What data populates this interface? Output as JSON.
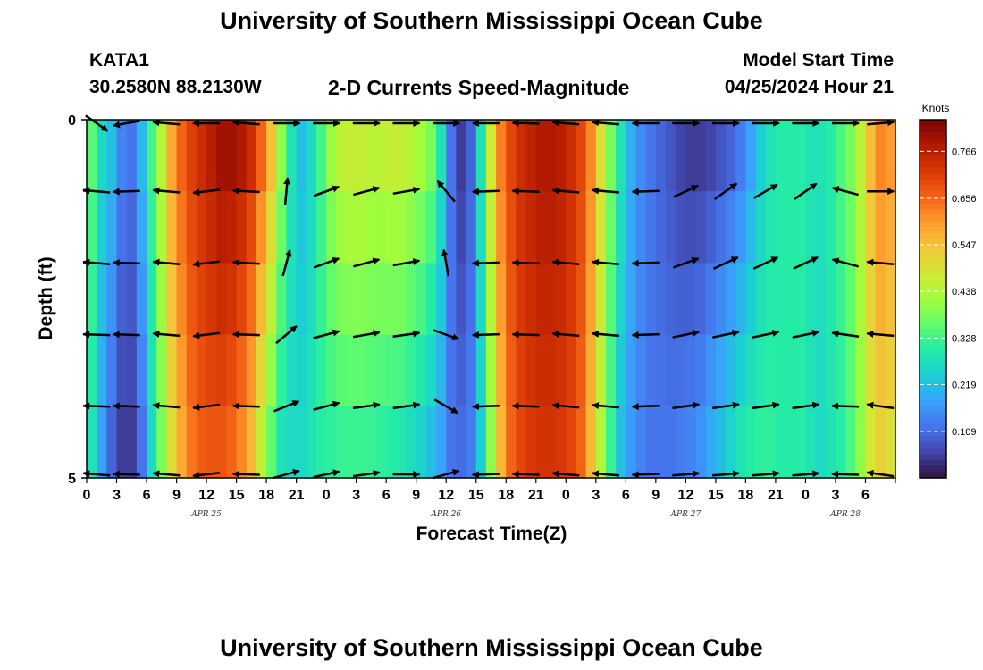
{
  "page": {
    "title_top": "University of Southern Mississippi Ocean Cube",
    "title_bottom": "University of Southern Mississippi Ocean Cube",
    "station_id": "KATA1",
    "station_coords": "30.2580N  88.2130W",
    "chart_heading": "2-D Currents Speed-Magnitude",
    "model_start_label": "Model Start Time",
    "model_start_value": "04/25/2024 Hour 21"
  },
  "colors": {
    "colormap": [
      "#30123b",
      "#4145ab",
      "#4675ed",
      "#39a2fc",
      "#1bcfd4",
      "#24eca6",
      "#61fc6c",
      "#a4fc3b",
      "#d1e834",
      "#f3c63a",
      "#fe9b2d",
      "#f36315",
      "#d93806",
      "#b11901",
      "#7a0403"
    ],
    "arrow": "#000000",
    "axis": "#000000"
  },
  "chart_data": {
    "type": "heatmap",
    "title": "2-D Currents Speed-Magnitude",
    "xlabel": "Forecast Time(Z)",
    "ylabel": "Depth (ft)",
    "colorbar_label": "Knots",
    "colorbar_ticks": [
      0.766,
      0.656,
      0.547,
      0.438,
      0.328,
      0.219,
      0.109
    ],
    "colorbar_tick_labels": [
      "0.766",
      "0.656",
      "0.547",
      "0.438",
      "0.328",
      "0.219",
      "0.109"
    ],
    "zlim": [
      0.0,
      0.84
    ],
    "xlim": [
      0,
      81
    ],
    "ylim": [
      0,
      5
    ],
    "x_ticks": [
      0,
      3,
      6,
      9,
      12,
      15,
      18,
      21,
      24,
      27,
      30,
      33,
      36,
      39,
      42,
      45,
      48,
      51,
      54,
      57,
      60,
      63,
      66,
      69,
      72,
      75,
      78,
      81
    ],
    "x_tick_labels": [
      "0",
      "3",
      "6",
      "9",
      "12",
      "15",
      "18",
      "21",
      "0",
      "3",
      "6",
      "9",
      "12",
      "15",
      "18",
      "21",
      "0",
      "3",
      "6",
      "9",
      "12",
      "15",
      "18",
      "21",
      "0",
      "3",
      "6"
    ],
    "x_tick_labels_note": "labels align with x_ticks from hour 0 to 78 (27 labels shown + end)",
    "y_tick_values": [
      0,
      5
    ],
    "y_tick_labels": [
      "0",
      "5"
    ],
    "date_labels": [
      {
        "text": "APR 25",
        "x": 12
      },
      {
        "text": "APR 26",
        "x": 36
      },
      {
        "text": "APR 27",
        "x": 60
      },
      {
        "text": "APR 28",
        "x": 76
      }
    ],
    "depth_keys": [
      0,
      1,
      2,
      3,
      4,
      5
    ],
    "speed_profile": {
      "hours": [
        0,
        1,
        2,
        3,
        4,
        5,
        6,
        7,
        8,
        9,
        10,
        11,
        12,
        13,
        14,
        15,
        16,
        17,
        18,
        19,
        20,
        21,
        22,
        23,
        24,
        25,
        26,
        27,
        28,
        29,
        30,
        31,
        32,
        33,
        34,
        35,
        36,
        37,
        38,
        39,
        40,
        41,
        42,
        43,
        44,
        45,
        46,
        47,
        48,
        49,
        50,
        51,
        52,
        53,
        54,
        55,
        56,
        57,
        58,
        59,
        60,
        61,
        62,
        63,
        64,
        65,
        66,
        67,
        68,
        69,
        70,
        71,
        72,
        73,
        74,
        75,
        76,
        77,
        78,
        79,
        80,
        81
      ],
      "surface": [
        0.35,
        0.26,
        0.22,
        0.14,
        0.12,
        0.21,
        0.33,
        0.44,
        0.58,
        0.66,
        0.71,
        0.74,
        0.77,
        0.8,
        0.8,
        0.78,
        0.74,
        0.66,
        0.55,
        0.4,
        0.28,
        0.22,
        0.26,
        0.33,
        0.41,
        0.45,
        0.46,
        0.46,
        0.45,
        0.45,
        0.46,
        0.46,
        0.44,
        0.42,
        0.38,
        0.28,
        0.12,
        0.05,
        0.1,
        0.28,
        0.48,
        0.63,
        0.7,
        0.74,
        0.76,
        0.78,
        0.78,
        0.77,
        0.74,
        0.7,
        0.62,
        0.5,
        0.38,
        0.28,
        0.2,
        0.15,
        0.12,
        0.1,
        0.08,
        0.06,
        0.05,
        0.05,
        0.06,
        0.08,
        0.1,
        0.13,
        0.18,
        0.24,
        0.28,
        0.3,
        0.3,
        0.3,
        0.28,
        0.28,
        0.3,
        0.34,
        0.38,
        0.45,
        0.55,
        0.62,
        0.6,
        0.55
      ],
      "bottom": [
        0.28,
        0.18,
        0.1,
        0.05,
        0.05,
        0.12,
        0.26,
        0.38,
        0.5,
        0.58,
        0.64,
        0.67,
        0.68,
        0.68,
        0.66,
        0.62,
        0.56,
        0.46,
        0.36,
        0.28,
        0.26,
        0.26,
        0.28,
        0.3,
        0.31,
        0.32,
        0.32,
        0.32,
        0.32,
        0.31,
        0.3,
        0.29,
        0.27,
        0.25,
        0.22,
        0.18,
        0.12,
        0.11,
        0.13,
        0.24,
        0.4,
        0.56,
        0.66,
        0.7,
        0.72,
        0.73,
        0.73,
        0.72,
        0.7,
        0.66,
        0.56,
        0.44,
        0.32,
        0.22,
        0.17,
        0.14,
        0.12,
        0.12,
        0.12,
        0.13,
        0.14,
        0.16,
        0.19,
        0.22,
        0.25,
        0.28,
        0.3,
        0.31,
        0.31,
        0.3,
        0.3,
        0.3,
        0.28,
        0.26,
        0.28,
        0.3,
        0.34,
        0.4,
        0.48,
        0.52,
        0.5,
        0.48
      ],
      "depth_factor": [
        1.0,
        1.0,
        0.98,
        0.93,
        0.86,
        0.78
      ]
    },
    "vectors": {
      "columns_hours": [
        1,
        4,
        8,
        12,
        16,
        20,
        24,
        28,
        32,
        36,
        40,
        44,
        48,
        52,
        56,
        60,
        64,
        68,
        72,
        76,
        79.5
      ],
      "rows_depth": [
        1,
        2,
        3,
        4,
        5
      ],
      "angles_deg_by_row": [
        [
          175,
          182,
          175,
          187,
          177,
          85,
          20,
          15,
          10,
          130,
          182,
          178,
          175,
          175,
          182,
          25,
          35,
          30,
          35,
          165,
          0
        ],
        [
          175,
          178,
          175,
          187,
          177,
          75,
          20,
          15,
          10,
          100,
          182,
          178,
          175,
          175,
          182,
          20,
          25,
          25,
          25,
          165,
          175
        ],
        [
          178,
          178,
          175,
          187,
          178,
          40,
          15,
          10,
          8,
          -20,
          182,
          178,
          175,
          175,
          182,
          12,
          12,
          12,
          12,
          172,
          175
        ],
        [
          178,
          178,
          175,
          187,
          178,
          22,
          15,
          8,
          8,
          -30,
          182,
          178,
          175,
          175,
          182,
          8,
          8,
          8,
          8,
          178,
          172
        ],
        [
          175,
          178,
          175,
          187,
          178,
          15,
          12,
          8,
          0,
          15,
          182,
          178,
          175,
          175,
          182,
          5,
          5,
          5,
          5,
          178,
          172
        ]
      ],
      "top_row_angles_deg": [
        -35,
        -170,
        175,
        180,
        175,
        0,
        0,
        0,
        0,
        0,
        180,
        178,
        175,
        175,
        180,
        0,
        0,
        0,
        0,
        0,
        5
      ]
    }
  }
}
